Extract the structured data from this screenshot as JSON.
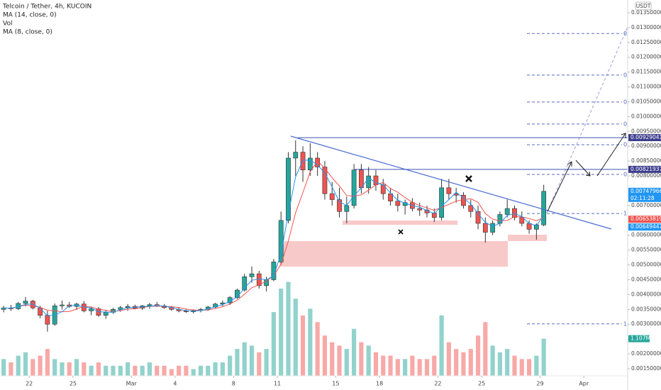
{
  "chart_data": {
    "type": "candlestick",
    "title": "Telcoin / Tether, 4h, KUCOIN",
    "indicators": [
      "MA (14, close, 0)",
      "Vol",
      "MA (8, close, 0)"
    ],
    "currency": "USDT",
    "xlim": [
      0,
      86
    ],
    "ylim": [
      0.00126,
      0.01393
    ],
    "volume_ylim": [
      0,
      11.2
    ],
    "xticks": [
      {
        "value": 4,
        "label": "22"
      },
      {
        "value": 10,
        "label": "25"
      },
      {
        "value": 18,
        "label": "Mar"
      },
      {
        "value": 24,
        "label": "4"
      },
      {
        "value": 32,
        "label": "8"
      },
      {
        "value": 38,
        "label": "11"
      },
      {
        "value": 46,
        "label": "15"
      },
      {
        "value": 52,
        "label": "18"
      },
      {
        "value": 60,
        "label": "22"
      },
      {
        "value": 66,
        "label": "25"
      },
      {
        "value": 74,
        "label": "29"
      },
      {
        "value": 80,
        "label": "Apr"
      }
    ],
    "yticks": [
      {
        "value": 0.0135,
        "label": "0.01350000"
      },
      {
        "value": 0.013,
        "label": "0.01300000"
      },
      {
        "value": 0.0125,
        "label": "0.01250000"
      },
      {
        "value": 0.012,
        "label": "0.01200000"
      },
      {
        "value": 0.0115,
        "label": "0.01150000"
      },
      {
        "value": 0.011,
        "label": "0.01100000"
      },
      {
        "value": 0.0105,
        "label": "0.01050000"
      },
      {
        "value": 0.01,
        "label": "0.01000000"
      },
      {
        "value": 0.0095,
        "label": "0.00950000"
      },
      {
        "value": 0.009,
        "label": "0.00900000"
      },
      {
        "value": 0.0085,
        "label": "0.00850000"
      },
      {
        "value": 0.008,
        "label": "0.00800000"
      },
      {
        "value": 0.007,
        "label": "0.00700000"
      },
      {
        "value": 0.006,
        "label": "0.00600000"
      },
      {
        "value": 0.0055,
        "label": "0.00550000"
      },
      {
        "value": 0.005,
        "label": "0.00500000"
      },
      {
        "value": 0.0045,
        "label": "0.00450000"
      },
      {
        "value": 0.004,
        "label": "0.00400000"
      },
      {
        "value": 0.0035,
        "label": "0.00350000"
      },
      {
        "value": 0.003,
        "label": "0.00300000"
      },
      {
        "value": 0.002,
        "label": "0.00200000"
      },
      {
        "value": 0.0015,
        "label": "0.00150000"
      }
    ],
    "up_color": "#26a69a",
    "down_color": "#ef5350",
    "x": [
      0.5,
      1.5,
      2.5,
      3.5,
      4.5,
      5.5,
      6.5,
      7.5,
      8.5,
      9.5,
      10.5,
      11.5,
      12.5,
      13.5,
      14.5,
      15.5,
      16.5,
      17.5,
      18.5,
      19.5,
      20.5,
      21.5,
      22.5,
      23.5,
      24.5,
      25.5,
      26.5,
      27.5,
      28.5,
      29.5,
      30.5,
      31.5,
      32.5,
      33.5,
      34.5,
      35.5,
      36.5,
      37.5,
      38.5,
      39.5,
      40.5,
      41.5,
      42.5,
      43.5,
      44.5,
      45.5,
      46.5,
      47.5,
      48.5,
      49.5,
      50.5,
      51.5,
      52.5,
      53.5,
      54.5,
      55.5,
      56.5,
      57.5,
      58.5,
      59.5,
      60.5,
      61.5,
      62.5,
      63.5,
      64.5,
      65.5,
      66.5,
      67.5,
      68.5,
      69.5,
      70.5,
      71.5,
      72.5,
      73.5,
      74.5
    ],
    "ohlc": [
      [
        0.0035,
        0.00362,
        0.0034,
        0.00355
      ],
      [
        0.00355,
        0.00365,
        0.00345,
        0.00352
      ],
      [
        0.00352,
        0.00375,
        0.00348,
        0.0037
      ],
      [
        0.0037,
        0.00392,
        0.0036,
        0.00378
      ],
      [
        0.00378,
        0.00382,
        0.0035,
        0.00355
      ],
      [
        0.00355,
        0.00362,
        0.0032,
        0.0033
      ],
      [
        0.0033,
        0.00345,
        0.00275,
        0.003
      ],
      [
        0.003,
        0.0037,
        0.00295,
        0.00362
      ],
      [
        0.00362,
        0.0038,
        0.0035,
        0.00365
      ],
      [
        0.00365,
        0.00375,
        0.00355,
        0.0036
      ],
      [
        0.0036,
        0.00372,
        0.00348,
        0.00368
      ],
      [
        0.00368,
        0.00378,
        0.0034,
        0.00345
      ],
      [
        0.00345,
        0.0036,
        0.0033,
        0.00352
      ],
      [
        0.00352,
        0.00358,
        0.00325,
        0.0033
      ],
      [
        0.0033,
        0.00348,
        0.00318,
        0.0034
      ],
      [
        0.0034,
        0.00355,
        0.00335,
        0.0035
      ],
      [
        0.0035,
        0.00362,
        0.00342,
        0.00356
      ],
      [
        0.00356,
        0.00368,
        0.00345,
        0.0036
      ],
      [
        0.0036,
        0.00366,
        0.0035,
        0.00354
      ],
      [
        0.00354,
        0.00365,
        0.00348,
        0.00362
      ],
      [
        0.00362,
        0.00372,
        0.00352,
        0.00366
      ],
      [
        0.00366,
        0.00375,
        0.00358,
        0.00362
      ],
      [
        0.00362,
        0.00368,
        0.00352,
        0.00356
      ],
      [
        0.00356,
        0.00362,
        0.00345,
        0.0035
      ],
      [
        0.0035,
        0.00358,
        0.0034,
        0.00345
      ],
      [
        0.00345,
        0.00352,
        0.00338,
        0.00342
      ],
      [
        0.00342,
        0.0035,
        0.00336,
        0.00346
      ],
      [
        0.00346,
        0.00355,
        0.0034,
        0.0035
      ],
      [
        0.0035,
        0.00362,
        0.00345,
        0.00358
      ],
      [
        0.00358,
        0.00372,
        0.00352,
        0.00368
      ],
      [
        0.00368,
        0.0038,
        0.0036,
        0.00372
      ],
      [
        0.00372,
        0.00395,
        0.00365,
        0.0039
      ],
      [
        0.0039,
        0.0042,
        0.00385,
        0.00415
      ],
      [
        0.00415,
        0.0047,
        0.0041,
        0.0046
      ],
      [
        0.0046,
        0.00495,
        0.0044,
        0.0047
      ],
      [
        0.0047,
        0.0048,
        0.0042,
        0.0043
      ],
      [
        0.0043,
        0.0046,
        0.0041,
        0.0045
      ],
      [
        0.0045,
        0.0052,
        0.00445,
        0.0051
      ],
      [
        0.0051,
        0.0068,
        0.005,
        0.0065
      ],
      [
        0.0065,
        0.0088,
        0.0064,
        0.0086
      ],
      [
        0.0086,
        0.0092,
        0.008,
        0.0088
      ],
      [
        0.0088,
        0.009,
        0.0078,
        0.0082
      ],
      [
        0.0082,
        0.0091,
        0.008,
        0.0086
      ],
      [
        0.0086,
        0.0088,
        0.008,
        0.0083
      ],
      [
        0.0083,
        0.0085,
        0.0072,
        0.0074
      ],
      [
        0.0074,
        0.0078,
        0.007,
        0.0072
      ],
      [
        0.0072,
        0.0076,
        0.0066,
        0.0068
      ],
      [
        0.0068,
        0.0073,
        0.0064,
        0.007
      ],
      [
        0.007,
        0.0084,
        0.0069,
        0.0082
      ],
      [
        0.0082,
        0.0084,
        0.0074,
        0.0076
      ],
      [
        0.0076,
        0.0083,
        0.0074,
        0.008
      ],
      [
        0.008,
        0.0082,
        0.0075,
        0.0077
      ],
      [
        0.0077,
        0.0079,
        0.0072,
        0.0074
      ],
      [
        0.0074,
        0.0076,
        0.007,
        0.00715
      ],
      [
        0.00715,
        0.0074,
        0.0068,
        0.007
      ],
      [
        0.007,
        0.0072,
        0.0067,
        0.0071
      ],
      [
        0.0071,
        0.00725,
        0.0068,
        0.0069
      ],
      [
        0.0069,
        0.0071,
        0.00665,
        0.00685
      ],
      [
        0.00685,
        0.007,
        0.0066,
        0.00675
      ],
      [
        0.00675,
        0.0069,
        0.00645,
        0.0066
      ],
      [
        0.0066,
        0.0079,
        0.0065,
        0.0076
      ],
      [
        0.0076,
        0.0079,
        0.0072,
        0.0074
      ],
      [
        0.0074,
        0.0076,
        0.0071,
        0.00735
      ],
      [
        0.00735,
        0.00745,
        0.0069,
        0.007
      ],
      [
        0.007,
        0.0072,
        0.0066,
        0.0068
      ],
      [
        0.0068,
        0.007,
        0.0062,
        0.0064
      ],
      [
        0.0064,
        0.0066,
        0.00575,
        0.0061
      ],
      [
        0.0061,
        0.0065,
        0.006,
        0.0064
      ],
      [
        0.0064,
        0.0068,
        0.0063,
        0.0067
      ],
      [
        0.0067,
        0.0072,
        0.0066,
        0.0069
      ],
      [
        0.0069,
        0.007,
        0.0065,
        0.0066
      ],
      [
        0.0066,
        0.0068,
        0.0063,
        0.0064
      ],
      [
        0.0064,
        0.0065,
        0.00605,
        0.0062
      ],
      [
        0.0062,
        0.0064,
        0.00585,
        0.00635
      ],
      [
        0.00635,
        0.0077,
        0.0063,
        0.00748
      ]
    ],
    "volume": [
      0.5,
      0.4,
      0.6,
      0.7,
      0.5,
      0.6,
      0.8,
      0.5,
      0.4,
      0.4,
      0.5,
      0.4,
      0.3,
      0.4,
      0.3,
      0.3,
      0.3,
      0.4,
      0.3,
      0.3,
      0.4,
      0.3,
      0.3,
      0.2,
      0.3,
      0.3,
      0.2,
      0.3,
      0.3,
      0.4,
      0.4,
      0.6,
      0.8,
      1.0,
      0.9,
      0.7,
      0.8,
      1.9,
      2.6,
      2.8,
      2.3,
      1.8,
      2.0,
      1.6,
      1.2,
      1.0,
      0.9,
      0.8,
      1.4,
      1.0,
      0.9,
      0.7,
      0.6,
      0.6,
      0.5,
      0.5,
      0.6,
      0.5,
      0.5,
      0.6,
      1.8,
      1.0,
      0.8,
      0.7,
      0.8,
      1.2,
      1.6,
      0.9,
      0.7,
      0.8,
      0.6,
      0.5,
      0.5,
      0.6,
      1.107
    ],
    "volume_label": {
      "value": 1.107,
      "label": "1.107M"
    },
    "series": [
      {
        "name": "MA (14, close, 0)",
        "color": "#ef5350",
        "values": [
          0.00355,
          0.00354,
          0.00359,
          0.00364,
          0.00362,
          0.00357,
          0.00347,
          0.00345,
          0.00342,
          0.00343,
          0.00351,
          0.0036,
          0.00358,
          0.00351,
          0.00347,
          0.00343,
          0.00346,
          0.00351,
          0.00352,
          0.00356,
          0.0036,
          0.00361,
          0.0036,
          0.00359,
          0.00356,
          0.00351,
          0.00348,
          0.00347,
          0.00348,
          0.00353,
          0.00359,
          0.00368,
          0.00381,
          0.00401,
          0.00423,
          0.00433,
          0.00445,
          0.00464,
          0.00502,
          0.0058,
          0.00676,
          0.00744,
          0.00814,
          0.0085,
          0.00826,
          0.00794,
          0.00766,
          0.00734,
          0.00732,
          0.00736,
          0.00752,
          0.0077,
          0.00778,
          0.00757,
          0.00745,
          0.00727,
          0.00711,
          0.007,
          0.00692,
          0.00684,
          0.00694,
          0.00704,
          0.00715,
          0.0072,
          0.00723,
          0.00711,
          0.00673,
          0.00654,
          0.00648,
          0.0065,
          0.00662,
          0.00662,
          0.00656,
          0.00649,
          0.00659
        ]
      },
      {
        "name": "MA (8, close, 0)",
        "color": "#2196f3",
        "values": [
          0.00355,
          0.00354,
          0.00359,
          0.00367,
          0.00368,
          0.00354,
          0.00328,
          0.00331,
          0.00342,
          0.00362,
          0.00364,
          0.00358,
          0.00355,
          0.00342,
          0.00341,
          0.0034,
          0.00349,
          0.00355,
          0.00357,
          0.00359,
          0.00361,
          0.00363,
          0.00361,
          0.00356,
          0.0035,
          0.00346,
          0.00344,
          0.00346,
          0.00351,
          0.00359,
          0.00366,
          0.00377,
          0.00392,
          0.00422,
          0.00448,
          0.00453,
          0.0045,
          0.00463,
          0.00537,
          0.00673,
          0.00797,
          0.00853,
          0.00853,
          0.00837,
          0.0081,
          0.00763,
          0.00713,
          0.007,
          0.00733,
          0.0076,
          0.00793,
          0.00777,
          0.0077,
          0.00742,
          0.00718,
          0.00708,
          0.007,
          0.00695,
          0.00683,
          0.00673,
          0.00698,
          0.0072,
          0.00745,
          0.00725,
          0.00705,
          0.00673,
          0.00643,
          0.0063,
          0.0064,
          0.00667,
          0.00673,
          0.00663,
          0.0064,
          0.00632,
          0.00668
        ]
      }
    ],
    "price_labels": [
      {
        "value": 0.00929041,
        "color": "#3d3d8c"
      },
      {
        "value": 0.00821937,
        "color": "#3d3d8c"
      },
      {
        "value": 0.00747966,
        "color": "#2196f3"
      },
      {
        "value": 0.00653819,
        "color": "#ef5350"
      },
      {
        "value": 0.00649447,
        "color": "#2196f3"
      }
    ],
    "countdown": "02:11:28",
    "fib_levels": [
      {
        "label": "0",
        "price": 0.0128
      },
      {
        "label": "0.",
        "price": 0.0114
      },
      {
        "label": "0.",
        "price": 0.01049
      },
      {
        "label": "0.",
        "price": 0.00975
      },
      {
        "label": "0.",
        "price": 0.00905
      },
      {
        "label": "0.",
        "price": 0.00805
      },
      {
        "label": "1",
        "price": 0.00673
      },
      {
        "label": "1.",
        "price": 0.00301
      }
    ]
  }
}
